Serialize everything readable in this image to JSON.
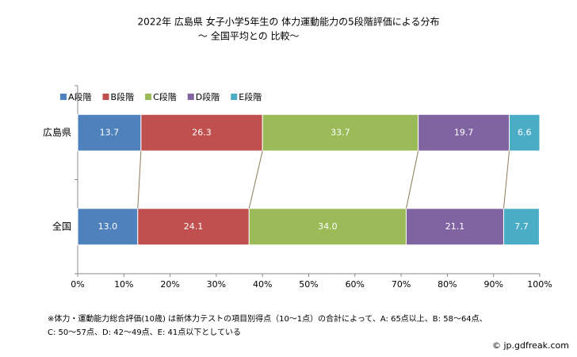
{
  "chart_data": {
    "type": "stacked_barh_percent",
    "title": "2022年 広島県 女子小学5年生の 体力運動能力の5段階評価による分布",
    "subtitle": "～ 全国平均との 比較～",
    "categories": [
      "広島県",
      "全国"
    ],
    "series": [
      {
        "name": "A段階",
        "color": "#4f81bd",
        "values": [
          13.7,
          13.0
        ],
        "value_labels": [
          "13.7",
          "13.0"
        ]
      },
      {
        "name": "B段階",
        "color": "#c0504d",
        "values": [
          26.3,
          24.1
        ],
        "value_labels": [
          "26.3",
          "24.1"
        ]
      },
      {
        "name": "C段階",
        "color": "#9bbb59",
        "values": [
          33.7,
          34.0
        ],
        "value_labels": [
          "33.7",
          "34.0"
        ]
      },
      {
        "name": "D段階",
        "color": "#8064a2",
        "values": [
          19.7,
          21.1
        ],
        "value_labels": [
          "19.7",
          "21.1"
        ]
      },
      {
        "name": "E段階",
        "color": "#4bacc6",
        "values": [
          6.6,
          7.7
        ],
        "value_labels": [
          "6.6",
          "7.7"
        ]
      }
    ],
    "xlim": [
      0,
      100
    ],
    "xticks": [
      {
        "value": 0,
        "label": "0%"
      },
      {
        "value": 10,
        "label": "10%"
      },
      {
        "value": 20,
        "label": "20%"
      },
      {
        "value": 30,
        "label": "30%"
      },
      {
        "value": 40,
        "label": "40%"
      },
      {
        "value": 50,
        "label": "50%"
      },
      {
        "value": 60,
        "label": "60%"
      },
      {
        "value": 70,
        "label": "70%"
      },
      {
        "value": 80,
        "label": "80%"
      },
      {
        "value": 90,
        "label": "90%"
      },
      {
        "value": 100,
        "label": "100%"
      }
    ],
    "legend": "top-left",
    "notes": [
      "※体力・運動能力総合評価(10歳) は新体力テストの項目別得点（10～1点）の合計によって、A: 65点以上、B: 58～64点、",
      "C: 50～57点、D: 42～49点、E: 41点以下としている"
    ],
    "source": "© jp.gdfreak.com"
  }
}
